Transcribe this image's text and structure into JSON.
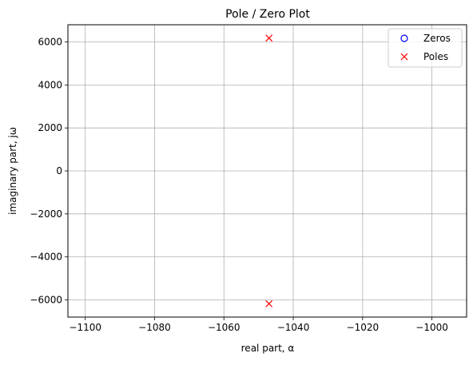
{
  "chart_data": {
    "type": "scatter",
    "title": "Pole / Zero Plot",
    "xlabel": "real part, α",
    "ylabel": "imaginary part, jω",
    "xlim": [
      -1105,
      -990
    ],
    "ylim": [
      -6800,
      6800
    ],
    "xticks": [
      -1100,
      -1080,
      -1060,
      -1040,
      -1020,
      -1000
    ],
    "xtick_labels": [
      "−1100",
      "−1080",
      "−1060",
      "−1040",
      "−1020",
      "−1000"
    ],
    "yticks": [
      -6000,
      -4000,
      -2000,
      0,
      2000,
      4000,
      6000
    ],
    "ytick_labels": [
      "−6000",
      "−4000",
      "−2000",
      "0",
      "2000",
      "4000",
      "6000"
    ],
    "grid": true,
    "legend_position": "top-right",
    "series": [
      {
        "name": "Zeros",
        "marker": "circle-open",
        "color": "#0000ff",
        "points": []
      },
      {
        "name": "Poles",
        "marker": "x",
        "color": "#ff0000",
        "points": [
          {
            "x": -1047,
            "y": 6180
          },
          {
            "x": -1047,
            "y": -6180
          }
        ]
      }
    ]
  }
}
